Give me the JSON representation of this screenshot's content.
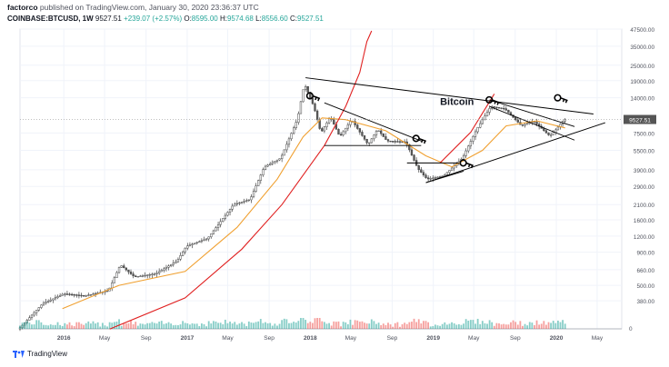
{
  "header": {
    "author": "factorco",
    "published": "published on TradingView.com, January 30, 2020 23:36:37 UTC",
    "symbol": "COINBASE:BTCUSD, 1W",
    "last": "9527.51",
    "change": "+239.07 (+2.57%)",
    "open_label": "O:",
    "open": "8595.00",
    "high_label": "H:",
    "high": "9574.68",
    "low_label": "L:",
    "low": "8556.60",
    "close_label": "C:",
    "close": "9527.51"
  },
  "footer": {
    "brand": "TradingView"
  },
  "colors": {
    "up": "#26a69a",
    "down": "#ef5350",
    "candle_body": "#5b5b5b",
    "ma_orange": "#f0a030",
    "ma_red": "#e02020",
    "trendline": "#000000",
    "price_tag_bg": "#555555",
    "grid": "#f0f3fa"
  },
  "chart_data": {
    "type": "candlestick",
    "title": "",
    "annotation": "Bitcoin",
    "y_scale": "log",
    "ylim": [
      280,
      47500
    ],
    "y_ticks": [
      380,
      500,
      660,
      900,
      1200,
      1600,
      2100,
      2900,
      3900,
      5500,
      7500,
      14000,
      19000,
      25000,
      35000,
      47500
    ],
    "y_tick_labels": [
      "380.00",
      "500.00",
      "660.00",
      "900.00",
      "1200.00",
      "1600.00",
      "2100.00",
      "2900.00",
      "3900.00",
      "5500.00",
      "7500.00",
      "14000.00",
      "19000.00",
      "25000.00",
      "35000.00",
      "47500.00"
    ],
    "last_price": 9527.51,
    "last_price_label": "9527.51",
    "volume_axis_label": "0",
    "x_range": [
      "2015-08-24",
      "2020-07-13"
    ],
    "x_ticks": [
      {
        "date": "2016-01-01",
        "label": "2016"
      },
      {
        "date": "2016-05-01",
        "label": "May"
      },
      {
        "date": "2016-09-01",
        "label": "Sep"
      },
      {
        "date": "2017-01-01",
        "label": "2017"
      },
      {
        "date": "2017-05-01",
        "label": "May"
      },
      {
        "date": "2017-09-01",
        "label": "Sep"
      },
      {
        "date": "2018-01-01",
        "label": "2018"
      },
      {
        "date": "2018-05-01",
        "label": "May"
      },
      {
        "date": "2018-09-01",
        "label": "Sep"
      },
      {
        "date": "2019-01-01",
        "label": "2019"
      },
      {
        "date": "2019-05-01",
        "label": "May"
      },
      {
        "date": "2019-09-01",
        "label": "Sep"
      },
      {
        "date": "2020-01-01",
        "label": "2020"
      },
      {
        "date": "2020-05-01",
        "label": "May"
      }
    ],
    "price_path": [
      [
        "2015-08-24",
        230
      ],
      [
        "2015-11-02",
        360
      ],
      [
        "2016-01-04",
        430
      ],
      [
        "2016-03-07",
        415
      ],
      [
        "2016-05-16",
        455
      ],
      [
        "2016-06-20",
        720
      ],
      [
        "2016-08-01",
        580
      ],
      [
        "2016-10-03",
        615
      ],
      [
        "2016-12-05",
        770
      ],
      [
        "2017-01-02",
        1000
      ],
      [
        "2017-03-06",
        1150
      ],
      [
        "2017-05-22",
        2100
      ],
      [
        "2017-07-10",
        2300
      ],
      [
        "2017-08-21",
        4100
      ],
      [
        "2017-10-09",
        4800
      ],
      [
        "2017-11-27",
        9500
      ],
      [
        "2017-12-18",
        18000
      ],
      [
        "2018-01-15",
        12000
      ],
      [
        "2018-02-05",
        7500
      ],
      [
        "2018-03-05",
        10000
      ],
      [
        "2018-04-02",
        7000
      ],
      [
        "2018-05-07",
        9500
      ],
      [
        "2018-06-25",
        6100
      ],
      [
        "2018-07-23",
        8000
      ],
      [
        "2018-08-20",
        6500
      ],
      [
        "2018-10-15",
        6400
      ],
      [
        "2018-11-19",
        4000
      ],
      [
        "2018-12-17",
        3300
      ],
      [
        "2019-02-04",
        3500
      ],
      [
        "2019-04-01",
        4800
      ],
      [
        "2019-05-13",
        8000
      ],
      [
        "2019-06-24",
        12000
      ],
      [
        "2019-08-05",
        11500
      ],
      [
        "2019-09-23",
        8500
      ],
      [
        "2019-10-28",
        9300
      ],
      [
        "2019-12-16",
        7100
      ],
      [
        "2020-01-06",
        8100
      ],
      [
        "2020-01-27",
        9527
      ]
    ],
    "series": [
      {
        "type": "line",
        "points": [
          [
            "2015-12-28",
            330
          ],
          [
            "2016-06-13",
            500
          ],
          [
            "2016-12-26",
            640
          ],
          [
            "2017-05-29",
            1400
          ],
          [
            "2017-09-25",
            3300
          ],
          [
            "2017-12-11",
            7000
          ],
          [
            "2018-02-05",
            9800
          ],
          [
            "2018-04-16",
            9500
          ],
          [
            "2018-08-13",
            7800
          ],
          [
            "2018-12-10",
            5000
          ],
          [
            "2019-02-25",
            4100
          ],
          [
            "2019-05-27",
            5500
          ],
          [
            "2019-08-05",
            8500
          ],
          [
            "2019-11-04",
            9300
          ],
          [
            "2020-01-27",
            8200
          ]
        ]
      },
      {
        "type": "line",
        "points": [
          [
            "2016-05-16",
            230
          ],
          [
            "2016-12-26",
            400
          ],
          [
            "2017-06-12",
            950
          ],
          [
            "2017-10-09",
            2100
          ],
          [
            "2018-02-12",
            6000
          ],
          [
            "2018-04-16",
            12000
          ],
          [
            "2018-05-28",
            22000
          ],
          [
            "2018-06-18",
            38000
          ],
          [
            "2018-07-02",
            46000
          ]
        ]
      },
      {
        "type": "line",
        "points": [
          [
            "2019-01-21",
            4400
          ],
          [
            "2019-04-22",
            7600
          ],
          [
            "2019-06-24",
            14000
          ],
          [
            "2019-07-01",
            15000
          ]
        ]
      }
    ],
    "trendlines": [
      [
        [
          "2017-12-18",
          20000
        ],
        [
          "2020-04-20",
          10500
        ]
      ],
      [
        [
          "2018-12-10",
          3100
        ],
        [
          "2020-05-25",
          9000
        ]
      ],
      [
        [
          "2018-02-12",
          12800
        ],
        [
          "2018-11-26",
          6500
        ]
      ],
      [
        [
          "2018-02-12",
          6000
        ],
        [
          "2018-11-26",
          6000
        ]
      ],
      [
        [
          "2018-10-15",
          4400
        ],
        [
          "2019-03-18",
          4400
        ]
      ],
      [
        [
          "2018-12-10",
          3100
        ],
        [
          "2019-04-01",
          3800
        ]
      ],
      [
        [
          "2019-06-17",
          13500
        ],
        [
          "2020-02-24",
          8400
        ]
      ],
      [
        [
          "2019-06-17",
          12000
        ],
        [
          "2020-02-24",
          6600
        ]
      ]
    ],
    "markers": [
      {
        "date": "2018-01-08",
        "price": 14500
      },
      {
        "date": "2018-11-19",
        "price": 6800
      },
      {
        "date": "2019-04-08",
        "price": 4400
      },
      {
        "date": "2019-06-24",
        "price": 13500
      },
      {
        "date": "2020-01-13",
        "price": 14000
      }
    ]
  }
}
